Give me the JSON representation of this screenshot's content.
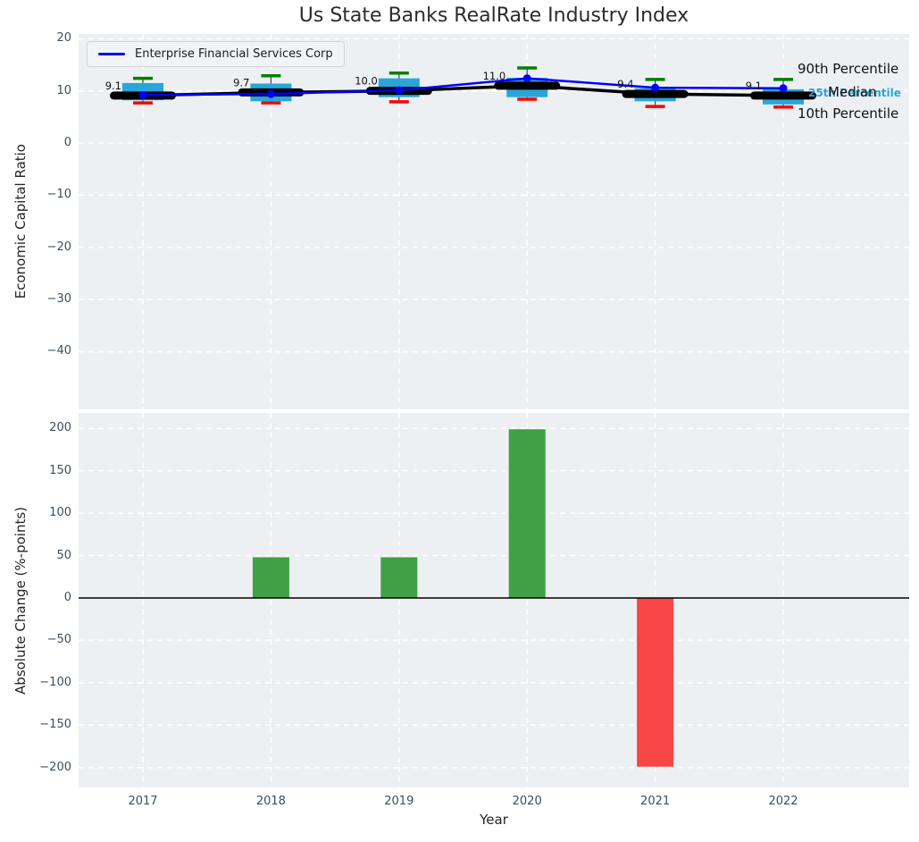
{
  "title": "Us State Banks RealRate Industry Index",
  "legend": {
    "series_label": "Enterprise Financial Services Corp"
  },
  "annotations": {
    "p90": "90th Percentile",
    "median": "Median",
    "p25": "25th Percentile",
    "p10": "10th Percentile"
  },
  "colors": {
    "background": "#ffffff",
    "axes_background": "#edf0f2",
    "grid": "#ffffff",
    "box_fill": "#29a5da",
    "whisker": "#444444",
    "cap_top": "#008000",
    "cap_bottom": "#ff0000",
    "median_line": "#000000",
    "enterprise_line": "#0000ff",
    "bar_positive": "#3fa045",
    "bar_negative": "#f84545",
    "tick_text": "#3d4c63",
    "label_text": "#262626",
    "annotation_text": "#111111",
    "percentile25_text": "#29a5da"
  },
  "chart_data": [
    {
      "type": "boxplot+line",
      "title": "Us State Banks RealRate Industry Index",
      "categories": [
        "2017",
        "2018",
        "2019",
        "2020",
        "2021",
        "2022"
      ],
      "ylabel": "Economic Capital Ratio",
      "yticks": [
        20,
        10,
        0,
        -10,
        -20,
        -30,
        -40
      ],
      "ylim": [
        -51,
        21
      ],
      "grid": true,
      "legend_position": "upper left",
      "series": [
        {
          "name": "Enterprise Financial Services Corp",
          "type": "line",
          "values": [
            9.2,
            9.4,
            10.1,
            12.4,
            10.6,
            10.5
          ]
        },
        {
          "name": "Median",
          "type": "line",
          "values": [
            9.1,
            9.7,
            10.0,
            11.0,
            9.4,
            9.1
          ]
        }
      ],
      "boxes": {
        "p90": [
          12.4,
          12.9,
          13.4,
          14.4,
          12.2,
          12.2
        ],
        "p75": [
          11.5,
          11.4,
          12.4,
          12.5,
          10.5,
          10.3
        ],
        "median": [
          9.1,
          9.7,
          10.0,
          11.0,
          9.4,
          9.1
        ],
        "p25": [
          8.2,
          8.0,
          8.8,
          8.8,
          8.0,
          7.4
        ],
        "p10": [
          7.7,
          7.7,
          7.9,
          8.4,
          7.0,
          6.9
        ]
      },
      "median_labels": [
        "9.1",
        "9.7",
        "10.0",
        "11.0",
        "9.4",
        "9.1"
      ]
    },
    {
      "type": "bar",
      "categories": [
        "2017",
        "2018",
        "2019",
        "2020",
        "2021",
        "2022"
      ],
      "values": [
        0,
        48,
        48,
        199,
        -199,
        0
      ],
      "xlabel": "Year",
      "ylabel": "Absolute Change (%-points)",
      "yticks": [
        200,
        150,
        100,
        50,
        0,
        -50,
        -100,
        -150,
        -200
      ],
      "ylim": [
        -223,
        219
      ],
      "grid": true,
      "zero_line": true
    }
  ]
}
